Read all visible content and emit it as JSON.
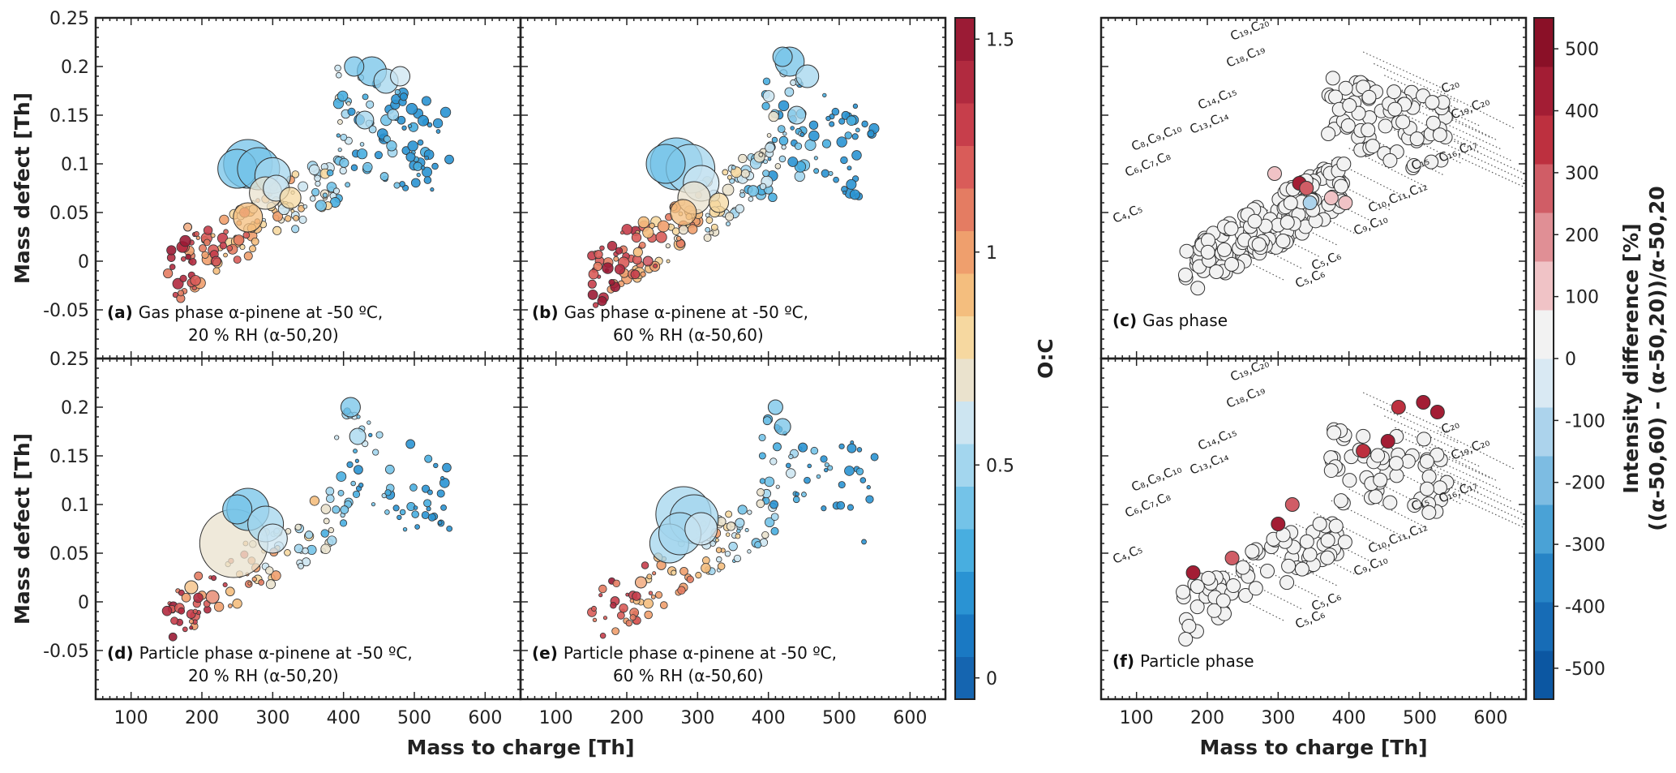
{
  "colors": {
    "oc_scale": [
      "#1565b0",
      "#1a79c3",
      "#2a93d3",
      "#48aee0",
      "#74c3e8",
      "#a3d6ee",
      "#cde5f1",
      "#eae2cd",
      "#f6d8a0",
      "#f4be7e",
      "#ef9f6d",
      "#e47c62",
      "#d95c59",
      "#c73e4b",
      "#b12a3f",
      "#9b1b35"
    ],
    "diff_scale": [
      "#0c57a2",
      "#176cb6",
      "#2784c6",
      "#4aa2d6",
      "#7dbce2",
      "#acd3ec",
      "#d9e9f3",
      "#f2f2f2",
      "#f0c3c6",
      "#e08f95",
      "#d05d66",
      "#bd303f",
      "#a31d34",
      "#8a1027"
    ],
    "frame": "#222222",
    "marker_edge": "#333333"
  },
  "shared_axes": {
    "x_label": "Mass to charge [Th]",
    "y_label": "Mass defect [Th]",
    "x_ticks": [
      "100",
      "200",
      "300",
      "400",
      "500",
      "600"
    ],
    "y_ticks": [
      "-0.05",
      "0",
      "0.05",
      "0.1",
      "0.15",
      "0.2",
      "0.25"
    ]
  },
  "colorbar_oc": {
    "label": "O:C",
    "ticks": [
      "0",
      "0.5",
      "1",
      "1.5"
    ]
  },
  "colorbar_diff": {
    "label_line1": "Intensity difference [%]",
    "label_line2": "((α-50,60) - (α-50,20))/α-50,20",
    "ticks": [
      "-500",
      "-400",
      "-300",
      "-200",
      "-100",
      "0",
      "100",
      "200",
      "300",
      "400",
      "500"
    ]
  },
  "chart_data": [
    {
      "type": "scatter",
      "panel": "a",
      "label_letter": "(a)",
      "label_line1": "Gas phase α-pinene at -50 ºC,",
      "label_line2": "20 % RH (α-50,20)",
      "xlim": [
        50,
        650
      ],
      "ylim": [
        -0.1,
        0.25
      ],
      "size_encodes": "signal intensity",
      "color_encodes": "O:C",
      "points": [
        {
          "x": 265,
          "y": 0.1,
          "oc": 0.45,
          "s": 30
        },
        {
          "x": 250,
          "y": 0.095,
          "oc": 0.4,
          "s": 24
        },
        {
          "x": 280,
          "y": 0.095,
          "oc": 0.48,
          "s": 26
        },
        {
          "x": 300,
          "y": 0.088,
          "oc": 0.55,
          "s": 22
        },
        {
          "x": 290,
          "y": 0.07,
          "oc": 0.72,
          "s": 20
        },
        {
          "x": 305,
          "y": 0.075,
          "oc": 0.7,
          "s": 16
        },
        {
          "x": 265,
          "y": 0.045,
          "oc": 0.95,
          "s": 18
        },
        {
          "x": 325,
          "y": 0.065,
          "oc": 0.8,
          "s": 13
        },
        {
          "x": 440,
          "y": 0.195,
          "oc": 0.45,
          "s": 18
        },
        {
          "x": 460,
          "y": 0.185,
          "oc": 0.55,
          "s": 15
        },
        {
          "x": 415,
          "y": 0.2,
          "oc": 0.45,
          "s": 12
        },
        {
          "x": 480,
          "y": 0.19,
          "oc": 0.62,
          "s": 12
        },
        {
          "x": 430,
          "y": 0.145,
          "oc": 0.55,
          "s": 11
        },
        {
          "x": 220,
          "y": 0.0,
          "oc": 1.35,
          "s": 6
        },
        {
          "x": 180,
          "y": 0.035,
          "oc": 1.0,
          "s": 5
        }
      ]
    },
    {
      "type": "scatter",
      "panel": "b",
      "label_letter": "(b)",
      "label_line1": "Gas phase α-pinene at -50 ºC,",
      "label_line2": "60 % RH (α-50,60)",
      "xlim": [
        50,
        650
      ],
      "ylim": [
        -0.1,
        0.25
      ],
      "size_encodes": "signal intensity",
      "color_encodes": "O:C",
      "points": [
        {
          "x": 270,
          "y": 0.1,
          "oc": 0.45,
          "s": 32
        },
        {
          "x": 290,
          "y": 0.095,
          "oc": 0.55,
          "s": 30
        },
        {
          "x": 255,
          "y": 0.1,
          "oc": 0.4,
          "s": 24
        },
        {
          "x": 305,
          "y": 0.08,
          "oc": 0.65,
          "s": 22
        },
        {
          "x": 295,
          "y": 0.065,
          "oc": 0.75,
          "s": 20
        },
        {
          "x": 280,
          "y": 0.05,
          "oc": 0.95,
          "s": 16
        },
        {
          "x": 330,
          "y": 0.06,
          "oc": 0.85,
          "s": 12
        },
        {
          "x": 430,
          "y": 0.205,
          "oc": 0.45,
          "s": 18
        },
        {
          "x": 455,
          "y": 0.19,
          "oc": 0.55,
          "s": 14
        },
        {
          "x": 420,
          "y": 0.21,
          "oc": 0.4,
          "s": 12
        },
        {
          "x": 440,
          "y": 0.15,
          "oc": 0.5,
          "s": 11
        },
        {
          "x": 230,
          "y": 0.0,
          "oc": 1.3,
          "s": 6
        }
      ]
    },
    {
      "type": "heatmap",
      "panel": "c",
      "label_letter": "(c)",
      "label_text": "Gas phase",
      "xlim": [
        50,
        650
      ],
      "ylim": [
        -0.1,
        0.25
      ],
      "color_encodes": "intensity difference [%]",
      "group_labels": [
        {
          "text": "C₁₉,C₂₀",
          "m": 1
        },
        {
          "text": "C₁₈,C₁₉",
          "m": 1
        },
        {
          "text": "C₁₄,C₁₅",
          "m": 1
        },
        {
          "text": "C₁₃,C₁₄",
          "m": 1
        },
        {
          "text": "C₈,C₉,C₁₀",
          "m": 1
        },
        {
          "text": "C₆,C₇,C₈",
          "m": 1
        },
        {
          "text": "C₄,C₅",
          "m": 1
        },
        {
          "text": "C₂₀",
          "m": 1
        },
        {
          "text": "C₁₉,C₂₀",
          "m": 1
        },
        {
          "text": "C₁₆,C₁₇",
          "m": 1
        },
        {
          "text": "C₁₅",
          "m": 1
        },
        {
          "text": "C₁₀,C₁₁,C₁₂",
          "m": 1
        },
        {
          "text": "C₉,C₁₀",
          "m": 1
        },
        {
          "text": "C₅,C₆",
          "m": 1
        },
        {
          "text": "C₅,C₆",
          "m": 1
        }
      ],
      "notable_points": [
        {
          "x": 295,
          "y": 0.09,
          "diff": 150
        },
        {
          "x": 330,
          "y": 0.08,
          "diff": 400
        },
        {
          "x": 340,
          "y": 0.075,
          "diff": 250
        },
        {
          "x": 375,
          "y": 0.065,
          "diff": 100
        },
        {
          "x": 395,
          "y": 0.06,
          "diff": 150
        },
        {
          "x": 345,
          "y": 0.06,
          "diff": -100
        }
      ]
    },
    {
      "type": "scatter",
      "panel": "d",
      "label_letter": "(d)",
      "label_line1": "Particle phase α-pinene at -50 ºC,",
      "label_line2": "20 % RH (α-50,20)",
      "xlim": [
        50,
        650
      ],
      "ylim": [
        -0.1,
        0.25
      ],
      "size_encodes": "signal intensity",
      "color_encodes": "O:C",
      "points": [
        {
          "x": 245,
          "y": 0.06,
          "oc": 0.75,
          "s": 42
        },
        {
          "x": 265,
          "y": 0.095,
          "oc": 0.45,
          "s": 26
        },
        {
          "x": 250,
          "y": 0.095,
          "oc": 0.4,
          "s": 18
        },
        {
          "x": 290,
          "y": 0.08,
          "oc": 0.6,
          "s": 22
        },
        {
          "x": 300,
          "y": 0.065,
          "oc": 0.7,
          "s": 18
        },
        {
          "x": 410,
          "y": 0.2,
          "oc": 0.45,
          "s": 12
        },
        {
          "x": 420,
          "y": 0.17,
          "oc": 0.5,
          "s": 10
        },
        {
          "x": 215,
          "y": 0.005,
          "oc": 1.2,
          "s": 8
        },
        {
          "x": 185,
          "y": 0.015,
          "oc": 0.95,
          "s": 8
        }
      ]
    },
    {
      "type": "scatter",
      "panel": "e",
      "label_letter": "(e)",
      "label_line1": "Particle phase α-pinene at -50 ºC,",
      "label_line2": "60 % RH (α-50,60)",
      "xlim": [
        50,
        650
      ],
      "ylim": [
        -0.1,
        0.25
      ],
      "size_encodes": "signal intensity",
      "color_encodes": "O:C",
      "points": [
        {
          "x": 280,
          "y": 0.09,
          "oc": 0.55,
          "s": 34
        },
        {
          "x": 295,
          "y": 0.085,
          "oc": 0.6,
          "s": 30
        },
        {
          "x": 260,
          "y": 0.06,
          "oc": 0.6,
          "s": 24
        },
        {
          "x": 275,
          "y": 0.07,
          "oc": 0.55,
          "s": 26
        },
        {
          "x": 305,
          "y": 0.075,
          "oc": 0.7,
          "s": 20
        },
        {
          "x": 420,
          "y": 0.18,
          "oc": 0.45,
          "s": 10
        },
        {
          "x": 410,
          "y": 0.2,
          "oc": 0.45,
          "s": 9
        },
        {
          "x": 220,
          "y": 0.02,
          "oc": 1.0,
          "s": 7
        }
      ]
    },
    {
      "type": "heatmap",
      "panel": "f",
      "label_letter": "(f)",
      "label_text": "Particle phase",
      "xlim": [
        50,
        650
      ],
      "ylim": [
        -0.1,
        0.25
      ],
      "color_encodes": "intensity difference [%]",
      "group_labels": [
        {
          "text": "C₁₉,C₂₀",
          "m": 1
        },
        {
          "text": "C₁₈,C₁₉",
          "m": 1
        },
        {
          "text": "C₁₄,C₁₅",
          "m": 1
        },
        {
          "text": "C₁₃,C₁₄",
          "m": 1
        },
        {
          "text": "C₈,C₉,C₁₀",
          "m": 1
        },
        {
          "text": "C₆,C₇,C₈",
          "m": 1
        },
        {
          "text": "C₄,C₅",
          "m": 1
        },
        {
          "text": "C₂₀",
          "m": 1
        },
        {
          "text": "C₁₉,C₂₀",
          "m": 1
        },
        {
          "text": "C₁₆,C₁₇",
          "m": 1
        },
        {
          "text": "C₁₅",
          "m": 1
        },
        {
          "text": "C₁₀,C₁₁,C₁₂",
          "m": 1
        },
        {
          "text": "C₉,C₁₀",
          "m": 1
        },
        {
          "text": "C₅,C₆",
          "m": 1
        },
        {
          "text": "C₅,C₆",
          "m": 1
        }
      ],
      "notable_points": [
        {
          "x": 505,
          "y": 0.205,
          "diff": 450
        },
        {
          "x": 525,
          "y": 0.195,
          "diff": 450
        },
        {
          "x": 470,
          "y": 0.2,
          "diff": 350
        },
        {
          "x": 455,
          "y": 0.165,
          "diff": 400
        },
        {
          "x": 180,
          "y": 0.03,
          "diff": 400
        },
        {
          "x": 235,
          "y": 0.045,
          "diff": 300
        },
        {
          "x": 300,
          "y": 0.08,
          "diff": 400
        },
        {
          "x": 420,
          "y": 0.155,
          "diff": 350
        },
        {
          "x": 320,
          "y": 0.1,
          "diff": 300
        }
      ]
    }
  ]
}
